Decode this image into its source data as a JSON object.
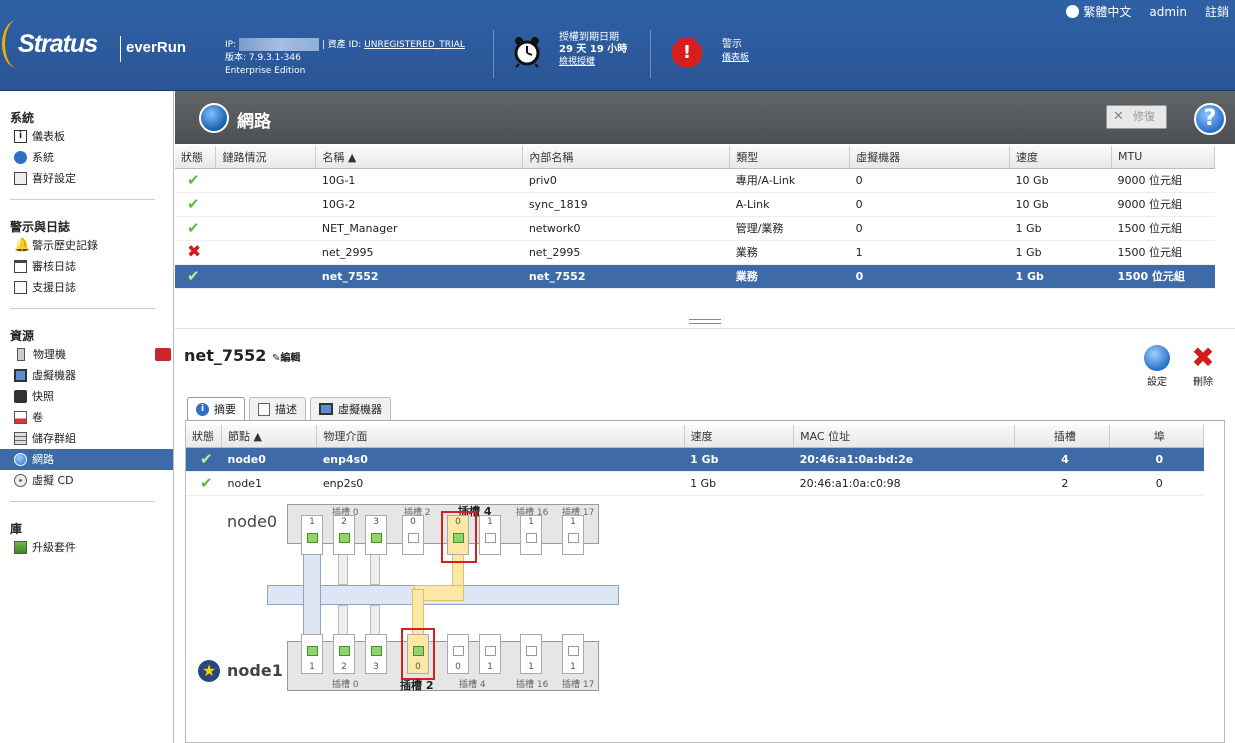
{
  "header": {
    "logo_brand": "Stratus",
    "logo_product": "everRun",
    "ip_label": "IP:",
    "asset_label": "| 資產 ID:",
    "asset_id": "UNREGISTERED_TRIAL",
    "version": "版本: 7.9.3.1-346",
    "edition": "Enterprise Edition",
    "license_title": "授權到期日期",
    "license_remaining": "29 天 19 小時",
    "license_link": "檢視授權",
    "alert_title": "警示",
    "alert_link": "儀表板",
    "language": "繁體中文",
    "user": "admin",
    "logout": "註銷"
  },
  "sidebar": {
    "sections": [
      {
        "title": "系統",
        "items": [
          "儀表板",
          "系統",
          "喜好設定"
        ]
      },
      {
        "title": "警示與日誌",
        "items": [
          "警示歷史記錄",
          "審核日誌",
          "支援日誌"
        ]
      },
      {
        "title": "資源",
        "items": [
          "物理機",
          "虛擬機器",
          "快照",
          "卷",
          "儲存群組",
          "網路",
          "虛擬 CD"
        ]
      },
      {
        "title": "庫",
        "items": [
          "升級套件"
        ]
      }
    ],
    "active": "網路"
  },
  "page": {
    "title": "網路",
    "repair_label": "修復",
    "help_label": "?"
  },
  "networks": {
    "columns": [
      "狀態",
      "鏈路情況",
      "名稱 ▲",
      "內部名稱",
      "類型",
      "虛擬機器",
      "速度",
      "MTU"
    ],
    "rows": [
      {
        "status": "ok",
        "name": "10G-1",
        "internal": "priv0",
        "type": "專用/A-Link",
        "vms": "0",
        "speed": "10 Gb",
        "mtu": "9000 位元組"
      },
      {
        "status": "ok",
        "name": "10G-2",
        "internal": "sync_1819",
        "type": "A-Link",
        "vms": "0",
        "speed": "10 Gb",
        "mtu": "9000 位元組"
      },
      {
        "status": "ok",
        "name": "NET_Manager",
        "internal": "network0",
        "type": "管理/業務",
        "vms": "0",
        "speed": "1 Gb",
        "mtu": "1500 位元組"
      },
      {
        "status": "bad",
        "name": "net_2995",
        "internal": "net_2995",
        "type": "業務",
        "vms": "1",
        "speed": "1 Gb",
        "mtu": "1500 位元組"
      },
      {
        "status": "ok",
        "name": "net_7552",
        "internal": "net_7552",
        "type": "業務",
        "vms": "0",
        "speed": "1 Gb",
        "mtu": "1500 位元組"
      }
    ],
    "selected_index": 4
  },
  "detail": {
    "name": "net_7552",
    "edit_label": "編輯",
    "settings_label": "設定",
    "delete_label": "刪除",
    "tabs": [
      "摘要",
      "描述",
      "虛擬機器"
    ],
    "columns": [
      "狀態",
      "節點 ▲",
      "物理介面",
      "速度",
      "MAC 位址",
      "插槽",
      "埠"
    ],
    "rows": [
      {
        "node": "node0",
        "iface": "enp4s0",
        "speed": "1 Gb",
        "mac": "20:46:a1:0a:bd:2e",
        "slot": "4",
        "port": "0"
      },
      {
        "node": "node1",
        "iface": "enp2s0",
        "speed": "1 Gb",
        "mac": "20:46:a1:0a:c0:98",
        "slot": "2",
        "port": "0"
      }
    ]
  },
  "diagram": {
    "node0_label": "node0",
    "node1_label": "node1",
    "slot_labels_top": [
      "插槽 0",
      "插槽 2",
      "插槽 4",
      "插槽 16",
      "插槽 17"
    ],
    "slot_labels_bottom": [
      "插槽 0",
      "插槽 2",
      "插槽 4",
      "插槽 16",
      "插槽 17"
    ],
    "top_ports": [
      "1",
      "2",
      "3",
      "0",
      "0",
      "1",
      "1",
      "1"
    ],
    "bottom_ports": [
      "1",
      "2",
      "3",
      "0",
      "0",
      "1",
      "1",
      "1"
    ]
  }
}
